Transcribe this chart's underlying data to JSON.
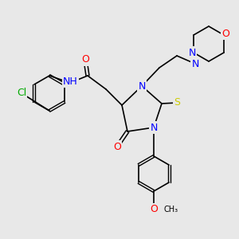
{
  "bg_color": "#e8e8e8",
  "bond_color": "#000000",
  "atom_colors": {
    "N": "#0000ff",
    "O": "#ff0000",
    "S": "#cccc00",
    "Cl": "#00aa00",
    "H": "#888888",
    "C": "#000000"
  },
  "font_size_atom": 9,
  "font_size_small": 8
}
